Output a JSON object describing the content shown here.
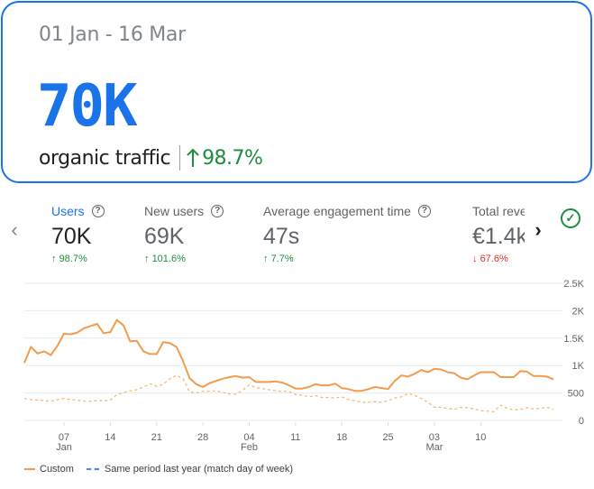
{
  "summary": {
    "date_range": "01 Jan - 16 Mar",
    "big_value": "70K",
    "caption": "organic traffic",
    "change": "98.7%"
  },
  "metrics": [
    {
      "label": "Users",
      "value": "70K",
      "change": "98.7%",
      "direction": "up",
      "active": true
    },
    {
      "label": "New users",
      "value": "69K",
      "change": "101.6%",
      "direction": "up",
      "active": false
    },
    {
      "label": "Average engagement time",
      "value": "47s",
      "change": "7.7%",
      "direction": "up",
      "active": false
    },
    {
      "label": "Total reve",
      "value": "€1.4k",
      "change": "67.6%",
      "direction": "down",
      "active": false
    }
  ],
  "icons": {
    "prev": "chevron-left-icon",
    "next": "chevron-right-icon",
    "help": "help-circle-icon",
    "check": "check-circle-icon"
  },
  "colors": {
    "accent": "#1a73e8",
    "positive": "#1e8e3e",
    "negative": "#d93025",
    "series_custom": "#f29b4c",
    "series_previous": "#f6b26b",
    "legend_dash": "#4285f4"
  },
  "legend": {
    "custom": "Custom",
    "previous": "Same period last year (match day of week)"
  },
  "chart_data": {
    "type": "line",
    "x_start": "2023-01-01",
    "x_ticks": [
      {
        "day": "07",
        "month": "Jan"
      },
      {
        "day": "14",
        "month": ""
      },
      {
        "day": "21",
        "month": ""
      },
      {
        "day": "28",
        "month": ""
      },
      {
        "day": "04",
        "month": "Feb"
      },
      {
        "day": "11",
        "month": ""
      },
      {
        "day": "18",
        "month": ""
      },
      {
        "day": "25",
        "month": ""
      },
      {
        "day": "03",
        "month": "Mar"
      },
      {
        "day": "10",
        "month": ""
      }
    ],
    "y_ticks": [
      "2.5K",
      "2K",
      "1.5K",
      "1K",
      "500",
      "0"
    ],
    "ylim": [
      0,
      2500
    ],
    "series": [
      {
        "name": "Custom",
        "style": "solid",
        "values": [
          1050,
          1340,
          1220,
          1260,
          1190,
          1360,
          1580,
          1570,
          1600,
          1680,
          1720,
          1760,
          1590,
          1610,
          1830,
          1730,
          1440,
          1450,
          1260,
          1210,
          1210,
          1430,
          1410,
          1340,
          1080,
          770,
          660,
          610,
          680,
          720,
          760,
          790,
          810,
          780,
          790,
          700,
          700,
          700,
          710,
          690,
          640,
          580,
          580,
          610,
          660,
          640,
          640,
          670,
          590,
          570,
          540,
          540,
          570,
          610,
          590,
          570,
          720,
          820,
          800,
          850,
          920,
          880,
          940,
          930,
          880,
          860,
          780,
          750,
          820,
          880,
          880,
          880,
          790,
          790,
          790,
          900,
          890,
          810,
          810,
          800,
          750
        ]
      },
      {
        "name": "Same period last year (match day of week)",
        "style": "dashed",
        "values": [
          400,
          380,
          370,
          360,
          350,
          380,
          400,
          380,
          370,
          350,
          350,
          360,
          360,
          370,
          470,
          510,
          540,
          560,
          610,
          670,
          620,
          660,
          760,
          820,
          760,
          520,
          500,
          530,
          530,
          540,
          510,
          480,
          480,
          550,
          650,
          600,
          580,
          560,
          540,
          530,
          530,
          470,
          460,
          430,
          450,
          420,
          420,
          410,
          430,
          380,
          360,
          330,
          330,
          340,
          330,
          360,
          410,
          430,
          490,
          460,
          400,
          330,
          240,
          240,
          220,
          200,
          240,
          230,
          210,
          180,
          170,
          160,
          280,
          220,
          190,
          200,
          230,
          210,
          220,
          240,
          200
        ]
      }
    ]
  }
}
